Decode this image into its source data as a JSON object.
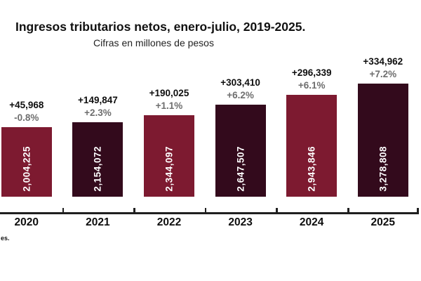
{
  "header": {
    "title": "Ingresos tributarios netos, enero-julio, 2019-2025.",
    "subtitle": "Cifras en millones de pesos"
  },
  "footnote": "es.",
  "colors": {
    "bar_crimson": "#7D1A30",
    "bar_dark_maroon": "#330A1C",
    "change_label": "#0e0e0e",
    "percent_label": "#6e6e6e",
    "axis": "#1f1f1f",
    "bar_value_text": "#ffffff"
  },
  "chart_data": {
    "type": "bar",
    "title": "Ingresos tributarios netos, enero-julio, 2019-2025.",
    "subtitle": "Cifras en millones de pesos",
    "xlabel": "",
    "ylabel": "Millones de pesos",
    "categories": [
      "2020",
      "2021",
      "2022",
      "2023",
      "2024",
      "2025"
    ],
    "values": [
      2004225,
      2154072,
      2344097,
      2647507,
      2943846,
      3278808
    ],
    "value_labels": [
      "2,004,225",
      "2,154,072",
      "2,344,097",
      "2,647,507",
      "2,943,846",
      "3,278,808"
    ],
    "change_labels": [
      "+45,968",
      "+149,847",
      "+190,025",
      "+303,410",
      "+296,339",
      "+334,962"
    ],
    "percent_labels": [
      "-0.8%",
      "+2.3%",
      "+1.1%",
      "+6.2%",
      "+6.1%",
      "+7.2%"
    ],
    "bar_colors": [
      "#7D1A30",
      "#330A1C",
      "#7D1A30",
      "#330A1C",
      "#7D1A30",
      "#330A1C"
    ],
    "ylim": [
      0,
      3400000
    ],
    "grid": false,
    "legend": false
  }
}
